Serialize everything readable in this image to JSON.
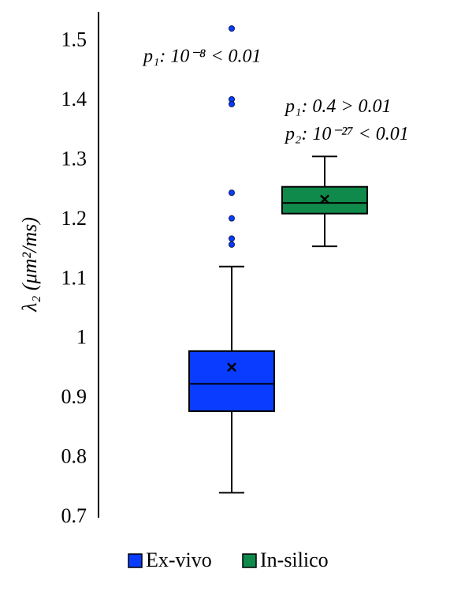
{
  "chart_data": {
    "type": "box",
    "y_label": "λ₂ (μm²/ms)",
    "ylim": [
      0.7,
      1.55
    ],
    "yticks": [
      0.7,
      0.8,
      0.9,
      1,
      1.1,
      1.2,
      1.3,
      1.4,
      1.5
    ],
    "legend": "bottom",
    "series": [
      {
        "name": "Ex-vivo",
        "color": "#0a3cff",
        "min": 0.742,
        "q1": 0.879,
        "median": 0.925,
        "q3": 0.98,
        "max": 1.122,
        "mean": 0.953,
        "outliers": [
          1.522,
          1.403,
          1.395,
          1.246,
          1.203,
          1.169,
          1.159
        ],
        "annotation": [
          "p₁: 10⁻⁸ < 0.01"
        ]
      },
      {
        "name": "In-silico",
        "color": "#0f8a4a",
        "min": 1.156,
        "q1": 1.211,
        "median": 1.229,
        "q3": 1.256,
        "max": 1.307,
        "mean": 1.235,
        "outliers": [],
        "annotation": [
          "p₁: 0.4 > 0.01",
          "p₂: 10⁻²⁷ < 0.01"
        ]
      }
    ]
  }
}
